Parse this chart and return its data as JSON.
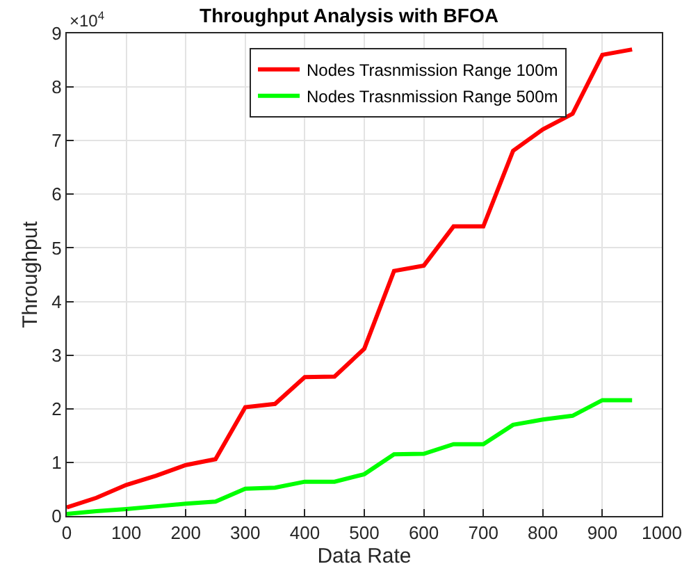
{
  "chart_data": {
    "type": "line",
    "title": "Throughput Analysis with BFOA",
    "xlabel": "Data Rate",
    "ylabel": "Throughput",
    "annotations": [
      "×10$^{4}$"
    ],
    "x": [
      0,
      50,
      100,
      150,
      200,
      250,
      300,
      350,
      400,
      450,
      500,
      550,
      600,
      650,
      700,
      750,
      800,
      850,
      900,
      950
    ],
    "series": [
      {
        "name": "Nodes Trasnmission Range 100m",
        "color": "#ff0000",
        "values": [
          0.16,
          0.34,
          0.58,
          0.75,
          0.95,
          1.06,
          2.03,
          2.09,
          2.59,
          2.6,
          3.12,
          4.57,
          4.67,
          5.4,
          5.4,
          6.81,
          7.21,
          7.5,
          8.6,
          8.7
        ]
      },
      {
        "name": "Nodes Trasnmission Range 500m",
        "color": "#00ff00",
        "values": [
          0.04,
          0.09,
          0.13,
          0.18,
          0.23,
          0.27,
          0.51,
          0.53,
          0.64,
          0.64,
          0.78,
          1.15,
          1.16,
          1.34,
          1.34,
          1.7,
          1.8,
          1.87,
          2.16,
          2.16
        ]
      }
    ],
    "xlim": [
      0,
      1000
    ],
    "xticks": [
      0,
      100,
      200,
      300,
      400,
      500,
      600,
      700,
      800,
      900,
      1000
    ],
    "ylim": [
      0,
      9
    ],
    "yticks": [
      0,
      1,
      2,
      3,
      4,
      5,
      6,
      7,
      8,
      9
    ],
    "grid": true,
    "legend": "top right",
    "marker": "none",
    "line_style": "solid"
  }
}
